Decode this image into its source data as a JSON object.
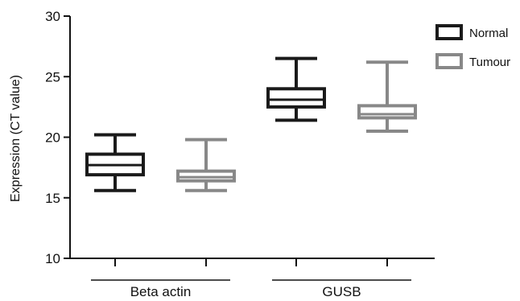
{
  "chart_data": {
    "type": "box",
    "ylabel": "Expression (CT value)",
    "ylim": [
      10,
      30
    ],
    "yticks": [
      10,
      15,
      20,
      25,
      30
    ],
    "groups": [
      "Beta actin",
      "GUSB"
    ],
    "legend": {
      "placement": "top-right",
      "entries": [
        "Normal",
        "Tumour"
      ]
    },
    "colors": {
      "Normal": "#1a1a1a",
      "Tumour": "#888888"
    },
    "series": [
      {
        "name": "Normal",
        "boxes": [
          {
            "group": "Beta actin",
            "min": 15.6,
            "q1": 16.9,
            "median": 17.7,
            "q3": 18.6,
            "max": 20.2
          },
          {
            "group": "GUSB",
            "min": 21.4,
            "q1": 22.5,
            "median": 23.1,
            "q3": 24.0,
            "max": 26.5
          }
        ]
      },
      {
        "name": "Tumour",
        "boxes": [
          {
            "group": "Beta actin",
            "min": 15.6,
            "q1": 16.4,
            "median": 16.7,
            "q3": 17.2,
            "max": 19.8
          },
          {
            "group": "GUSB",
            "min": 20.5,
            "q1": 21.6,
            "median": 21.9,
            "q3": 22.6,
            "max": 26.2
          }
        ]
      }
    ]
  }
}
